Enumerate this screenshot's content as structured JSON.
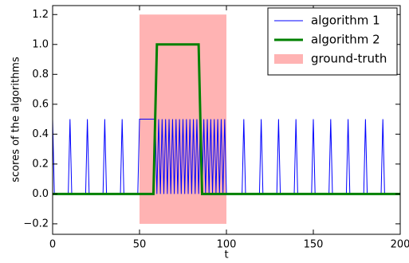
{
  "chart_data": {
    "type": "line",
    "xlabel": "t",
    "ylabel": "scores of the algorithms",
    "xlim": [
      0,
      200
    ],
    "ylim": [
      -0.27,
      1.26
    ],
    "xticks": [
      0,
      50,
      100,
      150,
      200
    ],
    "yticks": [
      {
        "value": -0.2,
        "label": "−0.2"
      },
      {
        "value": 0,
        "label": "0.0"
      },
      0.2,
      0.4,
      0.6,
      0.8,
      {
        "value": 1,
        "label": "1.0"
      },
      1.2
    ],
    "legend": "upper right",
    "series": [
      {
        "name": "algorithm 1",
        "color": "#0000ff",
        "width": 1,
        "x": [
          0,
          1,
          9,
          10,
          11,
          19,
          20,
          21,
          29,
          30,
          31,
          39,
          40,
          41,
          49,
          50,
          59,
          60,
          61,
          62,
          63,
          64,
          65,
          66,
          67,
          68,
          69,
          70,
          71,
          72,
          73,
          74,
          75,
          76,
          77,
          78,
          79,
          80,
          81,
          82,
          83,
          84,
          85,
          86,
          87,
          88,
          89,
          90,
          91,
          92,
          93,
          94,
          95,
          96,
          97,
          98,
          99,
          100,
          109,
          110,
          111,
          119,
          120,
          121,
          129,
          130,
          131,
          139,
          140,
          141,
          149,
          150,
          151,
          159,
          160,
          161,
          169,
          170,
          171,
          179,
          180,
          181,
          189,
          190,
          191,
          200
        ],
        "values": [
          0.5,
          0,
          0,
          0.5,
          0,
          0,
          0.5,
          0,
          0,
          0.5,
          0,
          0,
          0.5,
          0,
          0,
          0.5,
          0.5,
          0,
          0.5,
          0,
          0.5,
          0,
          0.5,
          0,
          0.5,
          0,
          0.5,
          0,
          0.5,
          0,
          0.5,
          0,
          0.5,
          0,
          0.5,
          0,
          0.5,
          0,
          0.5,
          0,
          0.5,
          0,
          0.5,
          0,
          0.5,
          0,
          0.5,
          0,
          0.5,
          0,
          0.5,
          0,
          0.5,
          0,
          0.5,
          0,
          0.5,
          0,
          0,
          0.5,
          0,
          0,
          0.5,
          0,
          0,
          0.5,
          0,
          0,
          0.5,
          0,
          0,
          0.5,
          0,
          0,
          0.5,
          0,
          0,
          0.5,
          0,
          0,
          0.5,
          0,
          0,
          0.5,
          0,
          0
        ]
      },
      {
        "name": "algorithm 2",
        "color": "#008000",
        "width": 3,
        "x": [
          0,
          58,
          60,
          84,
          86,
          200
        ],
        "values": [
          0,
          0,
          1,
          1,
          0,
          0
        ]
      }
    ],
    "spans": [
      {
        "name": "ground-truth",
        "color": "#ffb3b3",
        "x": [
          50,
          100
        ],
        "y": [
          -0.2,
          1.2
        ]
      }
    ]
  }
}
